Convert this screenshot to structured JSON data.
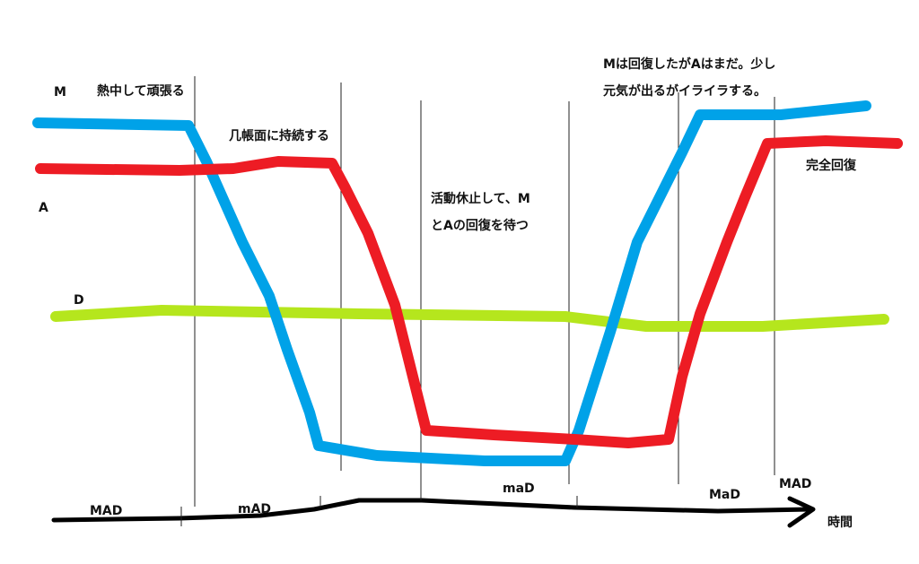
{
  "curve_labels": {
    "m": "M",
    "a": "A",
    "d": "D"
  },
  "phases": [
    {
      "text": [
        "熱中して頑張る"
      ]
    },
    {
      "text": [
        "几帳面に持続する"
      ]
    },
    {
      "text": [
        "活動休止して、M",
        "とAの回復を待つ"
      ]
    },
    {
      "text": [
        "Mは回復したがAはまだ。少し",
        "元気が出るがイライラする。"
      ]
    },
    {
      "text": [
        "完全回復"
      ]
    }
  ],
  "timeline": {
    "states": [
      "MAD",
      "mAD",
      "maD",
      "MaD",
      "MAD"
    ],
    "axis_label": "時間"
  }
}
